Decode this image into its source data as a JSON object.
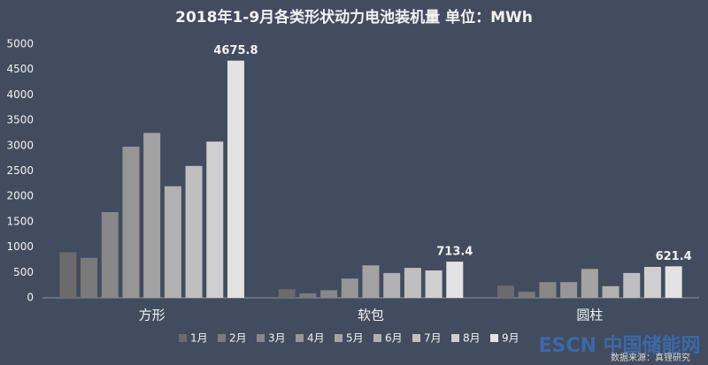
{
  "chart_data": {
    "type": "bar",
    "title": "2018年1-9月各类形状动力电池装机量  单位：MWh",
    "categories": [
      "方形",
      "软包",
      "圆柱"
    ],
    "series": [
      {
        "name": "1月",
        "color": "#6b6b6b",
        "values": [
          900,
          170,
          240
        ]
      },
      {
        "name": "2月",
        "color": "#7a7a7a",
        "values": [
          790,
          90,
          120
        ]
      },
      {
        "name": "3月",
        "color": "#888888",
        "values": [
          1690,
          150,
          310
        ]
      },
      {
        "name": "4月",
        "color": "#969696",
        "values": [
          2980,
          380,
          310
        ]
      },
      {
        "name": "5月",
        "color": "#a3a3a3",
        "values": [
          3250,
          640,
          570
        ]
      },
      {
        "name": "6月",
        "color": "#b1b1b1",
        "values": [
          2200,
          490,
          230
        ]
      },
      {
        "name": "7月",
        "color": "#bfbfbf",
        "values": [
          2600,
          590,
          490
        ]
      },
      {
        "name": "8月",
        "color": "#cfcfcf",
        "values": [
          3080,
          540,
          610
        ]
      },
      {
        "name": "9月",
        "color": "#e3e3e3",
        "values": [
          4675.8,
          713.4,
          621.4
        ],
        "value_labels": [
          "4675.8",
          "713.4",
          "621.4"
        ]
      }
    ],
    "ylim": [
      0,
      5000
    ],
    "yticks": [
      0,
      500,
      1000,
      1500,
      2000,
      2500,
      3000,
      3500,
      4000,
      4500,
      5000
    ],
    "grid": false,
    "legend": "bottom",
    "watermark": "ESCN 中国储能网",
    "source": "数据来源：真锂研究"
  }
}
